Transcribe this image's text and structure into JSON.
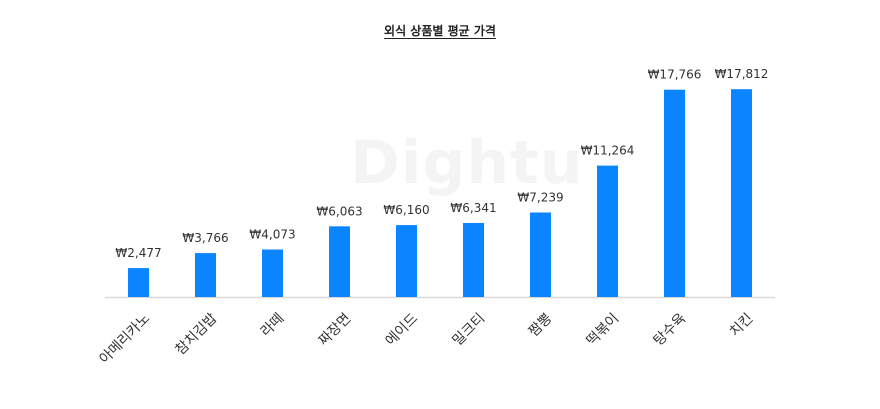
{
  "chart_data": {
    "type": "bar",
    "title": "외식 상품별 평균 가격",
    "watermark": "Dightu",
    "xlabel": "",
    "ylabel": "",
    "categories": [
      "아메리카노",
      "참치김밥",
      "라떼",
      "짜장면",
      "에이드",
      "밀크티",
      "짬뽕",
      "떡볶이",
      "탕수육",
      "치킨"
    ],
    "values": [
      2477,
      3766,
      4073,
      6063,
      6160,
      6341,
      7239,
      11264,
      17766,
      17812
    ],
    "value_labels": [
      "₩2,477",
      "₩3,766",
      "₩4,073",
      "₩6,063",
      "₩6,160",
      "₩6,341",
      "₩7,239",
      "₩11,264",
      "₩17,766",
      "₩17,812"
    ],
    "ylim": [
      0,
      18000
    ],
    "grid": false,
    "legend": "none",
    "bar_color": "#0A84FF",
    "axis_color": "#D9D9D9"
  }
}
